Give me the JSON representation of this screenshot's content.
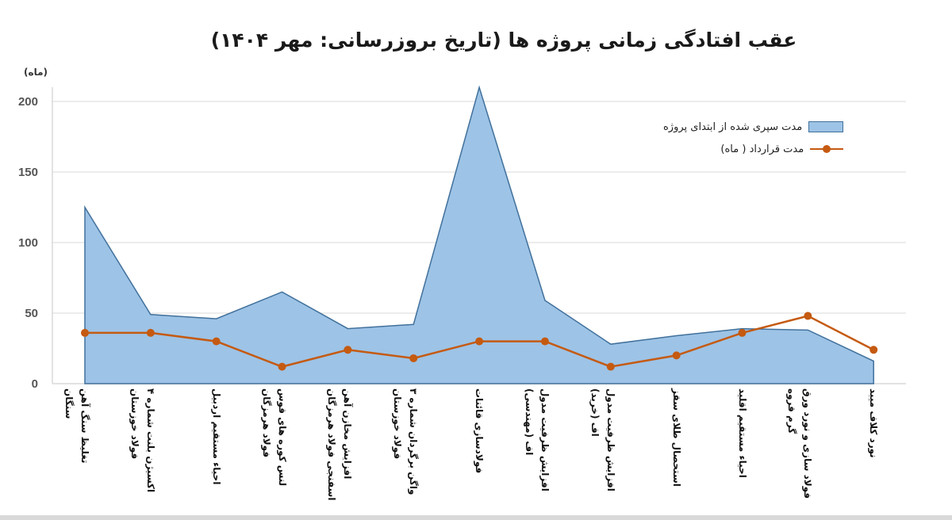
{
  "title": "عقب افتادگی زمانی پروژه ها  (تاریخ بروزرسانی: مهر ۱۴۰۴)",
  "unit_label": "(ماه)",
  "colors": {
    "area_fill": "#9dc3e6",
    "area_stroke": "#41719c",
    "line": "#c55a11",
    "grid": "#d9d9d9"
  },
  "legend": {
    "area_label": "مدت سپری شده از ابتدای پروژه",
    "line_label": "مدت قرارداد ( ماه)"
  },
  "y_ticks": [
    "0",
    "50",
    "100",
    "150",
    "200"
  ],
  "x_labels": [
    [
      "تغلیظ سنگ آهن",
      "سنگان"
    ],
    [
      "اکسیژن بلنت شماره ۴",
      "فولاد خوزستان"
    ],
    [
      "احیاء مستقیم اردبیل",
      ""
    ],
    [
      "لنس کوره های قوس",
      "فولاد هرمزگان"
    ],
    [
      "افزایش مخازن آهن",
      "اسفنجی فولاد هرمزگان"
    ],
    [
      "واگن برگردان شماره ۳",
      "فولاد خوزستان"
    ],
    [
      "فولادسازی قائنات",
      ""
    ],
    [
      "افزایش ظرفیت مدول",
      "اف (مهندسی)"
    ],
    [
      "افزایش ظرفیت مدول",
      "اف (خرید)"
    ],
    [
      "استحصال طلای سقز",
      ""
    ],
    [
      "احیاء مستقیم اقلید",
      ""
    ],
    [
      "فولاد سازی و نورد ورق",
      "گرم قروه"
    ],
    [
      "نورد کلاف میبد",
      ""
    ]
  ],
  "chart_data": {
    "type": "area",
    "title": "عقب افتادگی زمانی پروژه ها  (تاریخ بروزرسانی: مهر ۱۴۰۴)",
    "xlabel": "",
    "ylabel": "(ماه)",
    "ylim": [
      0,
      200
    ],
    "grid": true,
    "legend_position": "upper-right-inside",
    "categories": [
      "تغلیظ سنگ آهن سنگان",
      "اکسیژن بلنت شماره ۴ فولاد خوزستان",
      "احیاء مستقیم اردبیل",
      "لنس کوره های قوس فولاد هرمزگان",
      "افزایش مخازن آهن اسفنجی فولاد هرمزگان",
      "واگن برگردان شماره ۳ فولاد خوزستان",
      "فولادسازی قائنات",
      "افزایش ظرفیت مدول اف (مهندسی)",
      "افزایش ظرفیت مدول اف (خرید)",
      "استحصال طلای سقز",
      "احیاء مستقیم اقلید",
      "فولاد سازی و نورد ورق گرم قروه",
      "نورد کلاف میبد"
    ],
    "series": [
      {
        "name": "مدت سپری شده از ابتدای پروژه",
        "type": "area",
        "values": [
          125,
          49,
          46,
          65,
          39,
          42,
          210,
          59,
          28,
          34,
          39,
          38,
          16
        ]
      },
      {
        "name": "مدت قرارداد ( ماه)",
        "type": "line",
        "values": [
          36,
          36,
          30,
          12,
          24,
          18,
          30,
          30,
          12,
          20,
          36,
          48,
          24
        ]
      }
    ]
  }
}
